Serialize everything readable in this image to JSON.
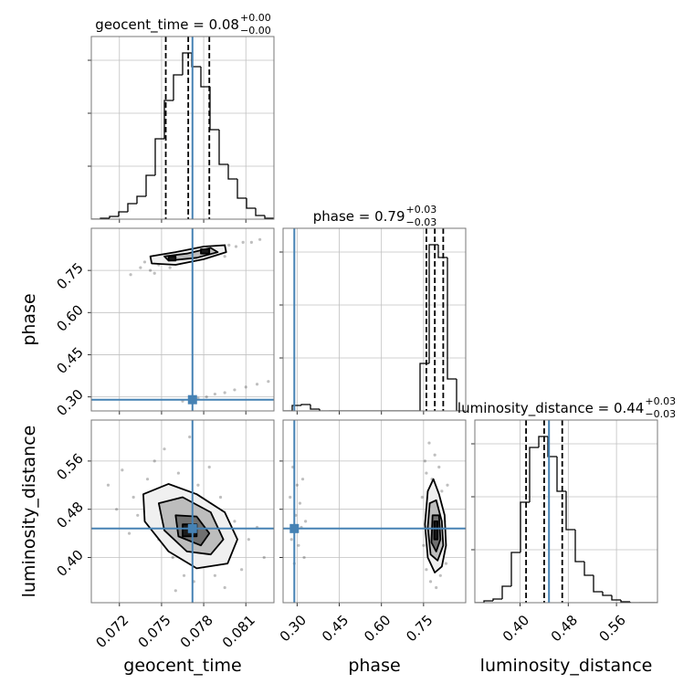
{
  "chart_data": [
    {
      "type": "histogram",
      "title": "geocent_time = 0.08",
      "title_upper": "+0.00",
      "title_lower": "−0.00",
      "bins": [
        0.07,
        0.07065,
        0.0713,
        0.07195,
        0.0726,
        0.07325,
        0.0739,
        0.07455,
        0.0752,
        0.07585,
        0.0765,
        0.07715,
        0.0778,
        0.07845,
        0.0791,
        0.07975,
        0.0804,
        0.08105,
        0.0817,
        0.08235,
        0.083
      ],
      "counts": [
        0,
        1,
        3,
        8,
        17,
        25,
        48,
        88,
        130,
        158,
        182,
        167,
        145,
        98,
        60,
        44,
        23,
        12,
        4,
        1
      ],
      "color": "#000000",
      "quantiles": [
        0.0753,
        0.0769,
        0.0784
      ],
      "truth": 0.0772,
      "truth_color": "#4682b4",
      "xlim": [
        0.07,
        0.083
      ],
      "xticks": [
        0.072,
        0.075,
        0.078,
        0.081
      ],
      "ylim": [
        0,
        200
      ],
      "yticks": [
        58,
        116,
        174
      ],
      "grid": true
    },
    {
      "type": "scatter",
      "x": [
        0.0728,
        0.0735,
        0.0742,
        0.0748,
        0.0752,
        0.0756,
        0.076,
        0.0763,
        0.0767,
        0.077,
        0.0774,
        0.0778,
        0.0781,
        0.0785,
        0.0789,
        0.0793,
        0.0798,
        0.0803,
        0.0808,
        0.0814,
        0.082,
        0.0745,
        0.0738,
        0.0795,
        0.077,
        0.0776,
        0.0782,
        0.0788,
        0.0795,
        0.0802,
        0.081,
        0.0818,
        0.0826,
        0.0765
      ],
      "y": [
        0.735,
        0.76,
        0.75,
        0.77,
        0.78,
        0.76,
        0.79,
        0.775,
        0.8,
        0.79,
        0.81,
        0.8,
        0.82,
        0.81,
        0.83,
        0.82,
        0.84,
        0.835,
        0.85,
        0.85,
        0.86,
        0.74,
        0.78,
        0.8,
        0.29,
        0.295,
        0.3,
        0.31,
        0.315,
        0.325,
        0.335,
        0.345,
        0.355,
        0.285
      ],
      "point_color": "#000000",
      "contours": [
        {
          "x": [
            0.0742,
            0.076,
            0.078,
            0.0795,
            0.0796,
            0.078,
            0.076,
            0.0743
          ],
          "y": [
            0.8,
            0.815,
            0.835,
            0.84,
            0.815,
            0.79,
            0.77,
            0.775
          ],
          "color": "#f0f0f0"
        },
        {
          "x": [
            0.0752,
            0.0768,
            0.0785,
            0.079,
            0.0775,
            0.0755
          ],
          "y": [
            0.8,
            0.81,
            0.83,
            0.815,
            0.795,
            0.785
          ],
          "color": "#bdbdbd"
        },
        {
          "x": [
            0.0755,
            0.076,
            0.076,
            0.0755
          ],
          "y": [
            0.785,
            0.785,
            0.8,
            0.8
          ],
          "color": "#1a1a1a"
        },
        {
          "x": [
            0.0778,
            0.0784,
            0.0784,
            0.0778
          ],
          "y": [
            0.81,
            0.81,
            0.825,
            0.825
          ],
          "color": "#1a1a1a"
        }
      ],
      "truth_x": 0.0772,
      "truth_y": 0.29,
      "truth_color": "#4682b4",
      "ylabel": "phase",
      "xlim": [
        0.07,
        0.083
      ],
      "xticks": [
        0.072,
        0.075,
        0.078,
        0.081
      ],
      "ylim": [
        0.25,
        0.9
      ],
      "yticks": [
        {
          "value": 0.3,
          "label": "0.30"
        },
        0.45,
        {
          "value": 0.6,
          "label": "0.60"
        },
        0.75
      ],
      "grid": true
    },
    {
      "type": "histogram",
      "title": "phase = 0.79",
      "title_upper": "+0.03",
      "title_lower": "−0.03",
      "bins": [
        0.25,
        0.2825,
        0.315,
        0.3475,
        0.38,
        0.4125,
        0.445,
        0.4775,
        0.51,
        0.5425,
        0.575,
        0.6075,
        0.64,
        0.6725,
        0.705,
        0.7375,
        0.77,
        0.8025,
        0.835,
        0.8675,
        0.9
      ],
      "counts": [
        0,
        6,
        7,
        2,
        0,
        0,
        0,
        0,
        0,
        0,
        0,
        0,
        0,
        0,
        0,
        52,
        182,
        168,
        35,
        0
      ],
      "color": "#000000",
      "quantiles": [
        0.76,
        0.79,
        0.82
      ],
      "truth": 0.29,
      "truth_color": "#4682b4",
      "xlim": [
        0.25,
        0.9
      ],
      "xticks": [
        {
          "value": 0.3,
          "label": "0.30"
        },
        0.45,
        {
          "value": 0.6,
          "label": "0.60"
        },
        0.75
      ],
      "ylim": [
        0,
        200
      ],
      "yticks": [
        58,
        116,
        174
      ],
      "grid": true
    },
    {
      "type": "scatter",
      "x": [
        0.0712,
        0.0722,
        0.073,
        0.0733,
        0.074,
        0.0745,
        0.0748,
        0.0752,
        0.0755,
        0.0758,
        0.0762,
        0.0766,
        0.077,
        0.0773,
        0.0776,
        0.078,
        0.0784,
        0.0788,
        0.0792,
        0.0797,
        0.0802,
        0.0807,
        0.0812,
        0.0818,
        0.0823,
        0.0727,
        0.0718,
        0.075,
        0.0795,
        0.076
      ],
      "y": [
        0.52,
        0.545,
        0.5,
        0.47,
        0.53,
        0.56,
        0.43,
        0.58,
        0.45,
        0.4,
        0.54,
        0.37,
        0.6,
        0.36,
        0.52,
        0.39,
        0.55,
        0.37,
        0.5,
        0.41,
        0.46,
        0.38,
        0.43,
        0.45,
        0.4,
        0.44,
        0.48,
        0.5,
        0.35,
        0.345
      ],
      "point_color": "#000000",
      "contours": [
        {
          "x": [
            0.0737,
            0.0755,
            0.0775,
            0.0795,
            0.0804,
            0.0797,
            0.0775,
            0.0755,
            0.0738
          ],
          "y": [
            0.505,
            0.522,
            0.505,
            0.475,
            0.43,
            0.39,
            0.382,
            0.41,
            0.46
          ],
          "color": "#f0f0f0"
        },
        {
          "x": [
            0.0748,
            0.0765,
            0.0785,
            0.0794,
            0.0785,
            0.0768,
            0.0752
          ],
          "y": [
            0.49,
            0.5,
            0.475,
            0.43,
            0.405,
            0.41,
            0.445
          ],
          "color": "#bdbdbd"
        },
        {
          "x": [
            0.076,
            0.0775,
            0.0784,
            0.0778,
            0.0762
          ],
          "y": [
            0.47,
            0.468,
            0.44,
            0.42,
            0.435
          ],
          "color": "#707070"
        },
        {
          "x": [
            0.0765,
            0.0775,
            0.0775,
            0.0765
          ],
          "y": [
            0.455,
            0.455,
            0.435,
            0.435
          ],
          "color": "#1a1a1a"
        }
      ],
      "truth_x": 0.0772,
      "truth_y": 0.448,
      "truth_color": "#4682b4",
      "xlabel": "geocent_time",
      "ylabel": "luminosity_distance",
      "xlim": [
        0.07,
        0.083
      ],
      "xticks": [
        0.072,
        0.075,
        0.078,
        0.081
      ],
      "ylim": [
        0.325,
        0.628
      ],
      "yticks": [
        {
          "value": 0.4,
          "label": "0.40"
        },
        0.48,
        0.56
      ],
      "grid": true
    },
    {
      "type": "scatter",
      "x": [
        0.745,
        0.75,
        0.755,
        0.76,
        0.765,
        0.77,
        0.775,
        0.78,
        0.785,
        0.79,
        0.795,
        0.8,
        0.805,
        0.81,
        0.815,
        0.82,
        0.825,
        0.83,
        0.835,
        0.76,
        0.275,
        0.28,
        0.285,
        0.29,
        0.295,
        0.3,
        0.305,
        0.31,
        0.315,
        0.32,
        0.325,
        0.33
      ],
      "y": [
        0.5,
        0.42,
        0.56,
        0.38,
        0.47,
        0.59,
        0.36,
        0.53,
        0.4,
        0.57,
        0.35,
        0.49,
        0.55,
        0.37,
        0.51,
        0.41,
        0.46,
        0.39,
        0.52,
        0.54,
        0.5,
        0.43,
        0.55,
        0.39,
        0.47,
        0.52,
        0.42,
        0.49,
        0.45,
        0.53,
        0.4,
        0.46
      ],
      "point_color": "#000000",
      "contours": [
        {
          "x": [
            0.765,
            0.785,
            0.805,
            0.825,
            0.83,
            0.815,
            0.79,
            0.765,
            0.755
          ],
          "y": [
            0.51,
            0.53,
            0.505,
            0.47,
            0.42,
            0.385,
            0.375,
            0.4,
            0.455
          ],
          "color": "#f0f0f0"
        },
        {
          "x": [
            0.772,
            0.795,
            0.815,
            0.82,
            0.8,
            0.775,
            0.765
          ],
          "y": [
            0.49,
            0.495,
            0.46,
            0.42,
            0.395,
            0.405,
            0.45
          ],
          "color": "#bdbdbd"
        },
        {
          "x": [
            0.782,
            0.805,
            0.81,
            0.795,
            0.778
          ],
          "y": [
            0.47,
            0.47,
            0.43,
            0.41,
            0.425
          ],
          "color": "#707070"
        },
        {
          "x": [
            0.788,
            0.8,
            0.8,
            0.788
          ],
          "y": [
            0.46,
            0.46,
            0.43,
            0.43
          ],
          "color": "#1a1a1a"
        }
      ],
      "truth_x": 0.29,
      "truth_y": 0.448,
      "truth_color": "#4682b4",
      "xlabel": "phase",
      "xlim": [
        0.25,
        0.9
      ],
      "xticks": [
        {
          "value": 0.3,
          "label": "0.30"
        },
        0.45,
        {
          "value": 0.6,
          "label": "0.60"
        },
        0.75
      ],
      "ylim": [
        0.325,
        0.628
      ],
      "yticks": [
        {
          "value": 0.4,
          "label": "0.40"
        },
        0.48,
        0.56
      ],
      "grid": true
    },
    {
      "type": "histogram",
      "title": "luminosity_distance = 0.44",
      "title_upper": "+0.03",
      "title_lower": "−0.03",
      "bins": [
        0.325,
        0.34015,
        0.3553,
        0.37045,
        0.3856,
        0.40075,
        0.4159,
        0.43105,
        0.4462,
        0.46135,
        0.4765,
        0.49165,
        0.5068,
        0.52195,
        0.5371,
        0.55225,
        0.5674,
        0.58255,
        0.5977,
        0.61285,
        0.628
      ],
      "counts": [
        0,
        2,
        4,
        18,
        55,
        110,
        170,
        182,
        160,
        122,
        80,
        45,
        30,
        12,
        8,
        3,
        1,
        0,
        0,
        0
      ],
      "color": "#000000",
      "quantiles": [
        0.41,
        0.44,
        0.47
      ],
      "truth": 0.448,
      "truth_color": "#4682b4",
      "xlabel": "luminosity_distance",
      "xlim": [
        0.325,
        0.628
      ],
      "xticks": [
        {
          "value": 0.4,
          "label": "0.40"
        },
        0.48,
        0.56
      ],
      "ylim": [
        0,
        200
      ],
      "yticks": [
        58,
        116,
        174
      ],
      "grid": true
    }
  ]
}
